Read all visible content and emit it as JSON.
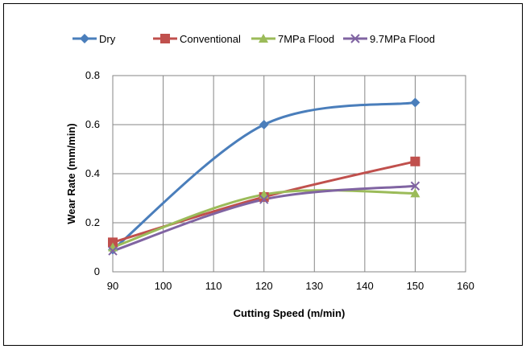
{
  "chart_data": {
    "type": "line",
    "title": "",
    "xlabel": "Cutting Speed (m/min)",
    "ylabel": "Wear Rate (mm/min)",
    "xlim": [
      90,
      160
    ],
    "ylim": [
      0,
      0.8
    ],
    "xticks": [
      90,
      100,
      110,
      120,
      130,
      140,
      150,
      160
    ],
    "yticks": [
      0,
      0.2,
      0.4,
      0.6,
      0.8
    ],
    "ytick_labels": [
      "0",
      "0.2",
      "0.4",
      "0.6",
      "0.8"
    ],
    "grid": true,
    "legend_position": "top",
    "x": [
      90,
      120,
      150
    ],
    "series": [
      {
        "name": "Dry",
        "values": [
          0.09,
          0.6,
          0.69
        ],
        "color": "#4a7ebb",
        "marker": "diamond"
      },
      {
        "name": "Conventional",
        "values": [
          0.12,
          0.305,
          0.45
        ],
        "color": "#c0504d",
        "marker": "square"
      },
      {
        "name": "7MPa Flood",
        "values": [
          0.1,
          0.315,
          0.32
        ],
        "color": "#9bbb59",
        "marker": "triangle"
      },
      {
        "name": "9.7MPa Flood",
        "values": [
          0.085,
          0.295,
          0.35
        ],
        "color": "#8064a2",
        "marker": "x"
      }
    ]
  }
}
